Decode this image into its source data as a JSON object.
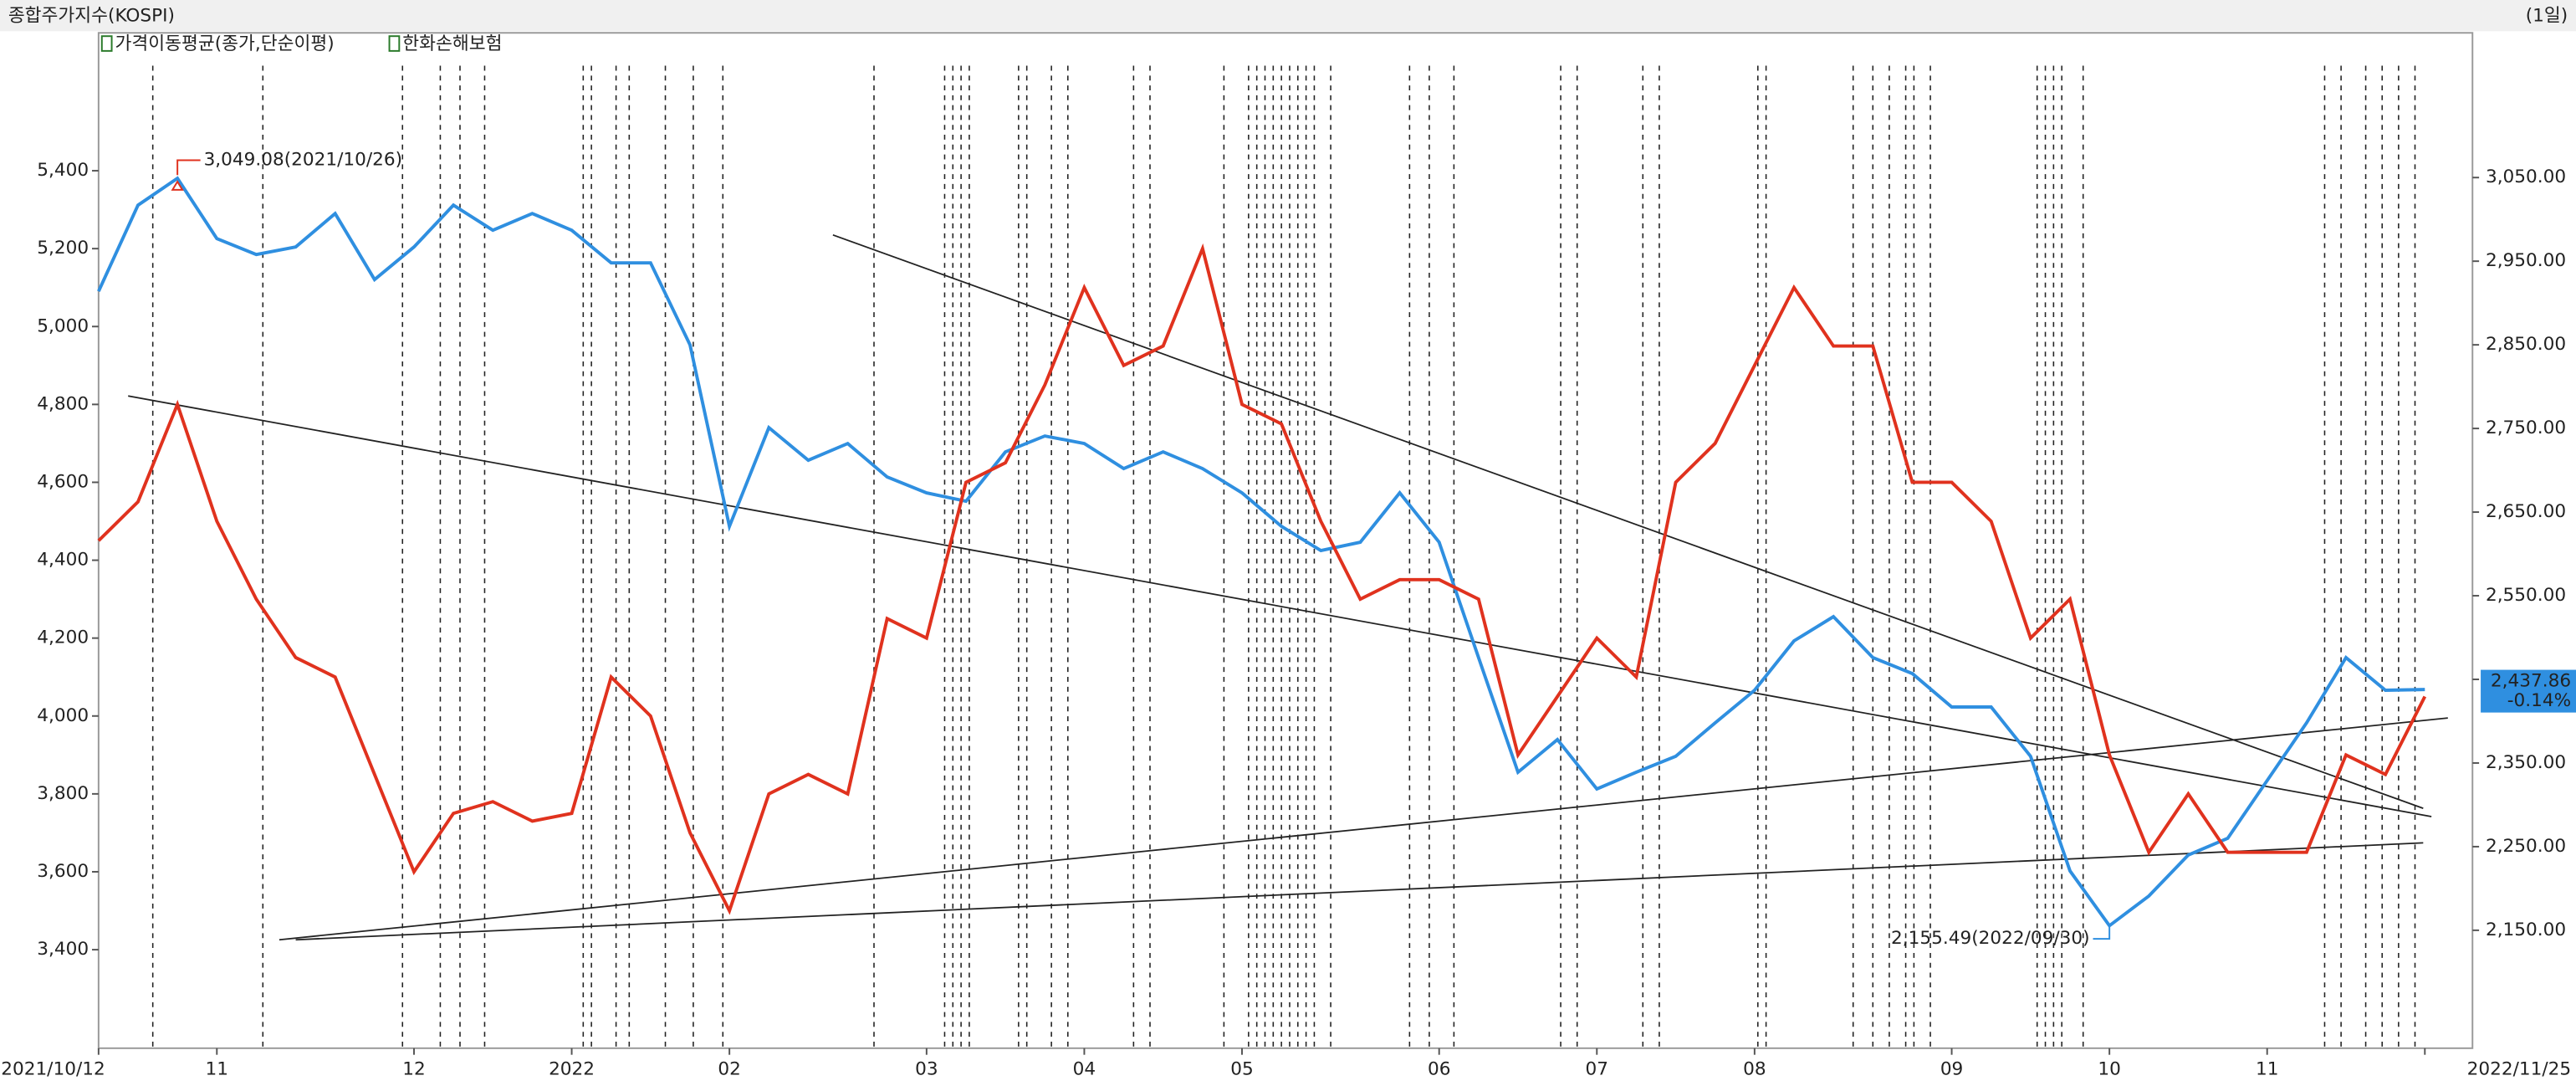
{
  "chart_data": {
    "type": "line",
    "title": "종합주가지수(KOSPI)",
    "period": "(1일)",
    "indicator": "가격이동평균(종가,단순이평)",
    "categories": [
      "2021/10/12",
      null,
      null,
      "11",
      null,
      null,
      null,
      null,
      "12",
      null,
      null,
      null,
      "2022",
      null,
      null,
      null,
      "02",
      null,
      null,
      null,
      null,
      "03",
      null,
      null,
      null,
      "04",
      null,
      null,
      null,
      "05",
      null,
      null,
      null,
      null,
      "06",
      null,
      null,
      null,
      "07",
      null,
      null,
      null,
      "08",
      null,
      null,
      null,
      null,
      "09",
      null,
      null,
      null,
      "10",
      null,
      null,
      null,
      "11",
      null,
      null,
      null,
      "2022/11/25"
    ],
    "series": [
      {
        "color": "#2f8fe0",
        "axis": "y2",
        "values": [
          2914,
          3017,
          3049.08,
          2977,
          2958,
          2967,
          3007,
          2928,
          2967,
          3017,
          2987,
          3007,
          2987,
          2948,
          2948,
          2850,
          2633,
          2751,
          2712,
          2732,
          2692,
          2673,
          2663,
          2722,
          2741,
          2732,
          2702,
          2722,
          2702,
          2673,
          2633,
          2604,
          2614,
          2673,
          2614,
          2476,
          2339,
          2378,
          2319,
          2339,
          2358,
          2398,
          2437,
          2496,
          2525,
          2476,
          2457,
          2417,
          2417,
          2358,
          2221,
          2155.49,
          2191,
          2240,
          2260,
          2329,
          2398,
          2476,
          2437,
          2437.86
        ]
      },
      {
        "name": "한화손해보험",
        "color": "#e0321e",
        "values": [
          4450,
          4550,
          4800,
          4500,
          4300,
          4150,
          4100,
          3850,
          3600,
          3750,
          3780,
          3730,
          3750,
          4100,
          4000,
          3700,
          3500,
          3800,
          3850,
          3800,
          4250,
          4200,
          4600,
          4650,
          4850,
          5100,
          4900,
          4950,
          5200,
          4800,
          4750,
          4500,
          4300,
          4350,
          4350,
          4300,
          3900,
          4050,
          4200,
          4100,
          4600,
          4700,
          4900,
          5100,
          4950,
          4950,
          4600,
          4600,
          4500,
          4200,
          4300,
          3900,
          3650,
          3800,
          3650,
          3650,
          3650,
          3900,
          3850,
          4050
        ]
      }
    ],
    "ylim": [
      3147,
      5754
    ],
    "yticks": [
      {
        "value": 3400,
        "label": "3,400"
      },
      {
        "value": 3600,
        "label": "3,600"
      },
      {
        "value": 3800,
        "label": "3,800"
      },
      {
        "value": 4000,
        "label": "4,000"
      },
      {
        "value": 4200,
        "label": "4,200"
      },
      {
        "value": 4400,
        "label": "4,400"
      },
      {
        "value": 4600,
        "label": "4,600"
      },
      {
        "value": 4800,
        "label": "4,800"
      },
      {
        "value": 5000,
        "label": "5,000"
      },
      {
        "value": 5200,
        "label": "5,200"
      },
      {
        "value": 5400,
        "label": "5,400"
      }
    ],
    "y2lim": [
      2009,
      3223
    ],
    "y2ticks": [
      {
        "value": 2150,
        "label": "2,150.00"
      },
      {
        "value": 2250,
        "label": "2,250.00"
      },
      {
        "value": 2350,
        "label": "2,350.00"
      },
      {
        "value": 2450,
        "label": "2,450.00"
      },
      {
        "value": 2550,
        "label": "2,550.00"
      },
      {
        "value": 2650,
        "label": "2,650.00"
      },
      {
        "value": 2750,
        "label": "2,750.00"
      },
      {
        "value": 2850,
        "label": "2,850.00"
      },
      {
        "value": 2950,
        "label": "2,950.00"
      },
      {
        "value": 3050,
        "label": "3,050.00"
      }
    ],
    "high_label": "3,049.08(2021/10/26)",
    "low_label": "2,155.49(2022/09/30)",
    "last_label": "2,437.86",
    "last_change": "-0.14%"
  }
}
